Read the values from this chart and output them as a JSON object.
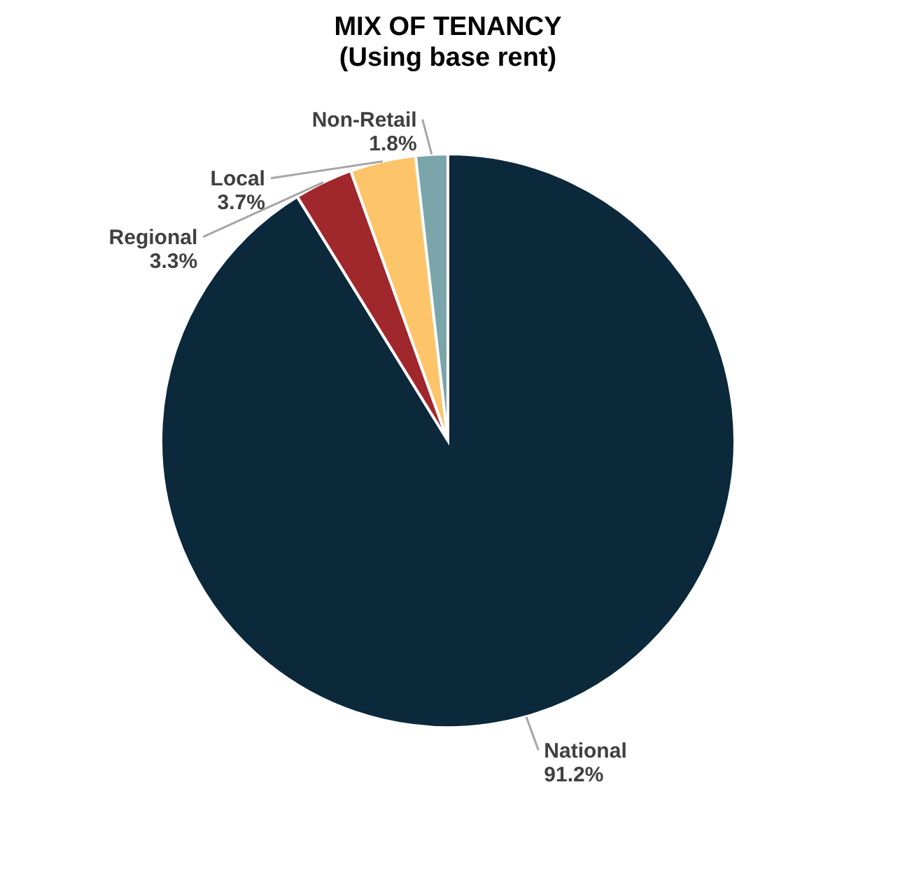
{
  "chart_data": {
    "type": "pie",
    "title": "MIX OF TENANCY",
    "subtitle": "(Using base rent)",
    "categories": [
      "National",
      "Regional",
      "Local",
      "Non-Retail"
    ],
    "values": [
      91.2,
      3.3,
      3.7,
      1.8
    ],
    "colors": [
      "#0c283b",
      "#a0282d",
      "#fdc46a",
      "#7aa5aa"
    ],
    "value_labels": [
      "91.2%",
      "3.3%",
      "3.7%",
      "1.8%"
    ],
    "legend": false
  }
}
